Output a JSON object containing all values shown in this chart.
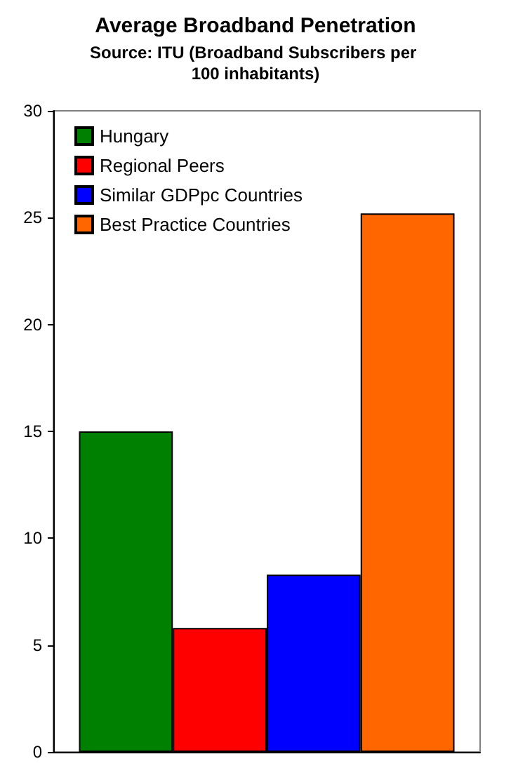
{
  "chart_data": {
    "type": "bar",
    "title": "Average Broadband Penetration",
    "subtitle": "Source: ITU (Broadband Subscribers per 100 inhabitants)",
    "categories": [
      null
    ],
    "series": [
      {
        "name": "Hungary",
        "color": "#008000",
        "values": [
          15.0
        ]
      },
      {
        "name": "Regional Peers",
        "color": "#ff0000",
        "values": [
          5.8
        ]
      },
      {
        "name": "Similar GDPpc Countries",
        "color": "#0000ff",
        "values": [
          8.3
        ]
      },
      {
        "name": "Best Practice Countries",
        "color": "#ff6600",
        "values": [
          25.2
        ]
      }
    ],
    "ylim": [
      0,
      30
    ],
    "yticks": [
      0,
      5,
      10,
      15,
      20,
      25,
      30
    ],
    "grid": false,
    "legend": "top left"
  }
}
